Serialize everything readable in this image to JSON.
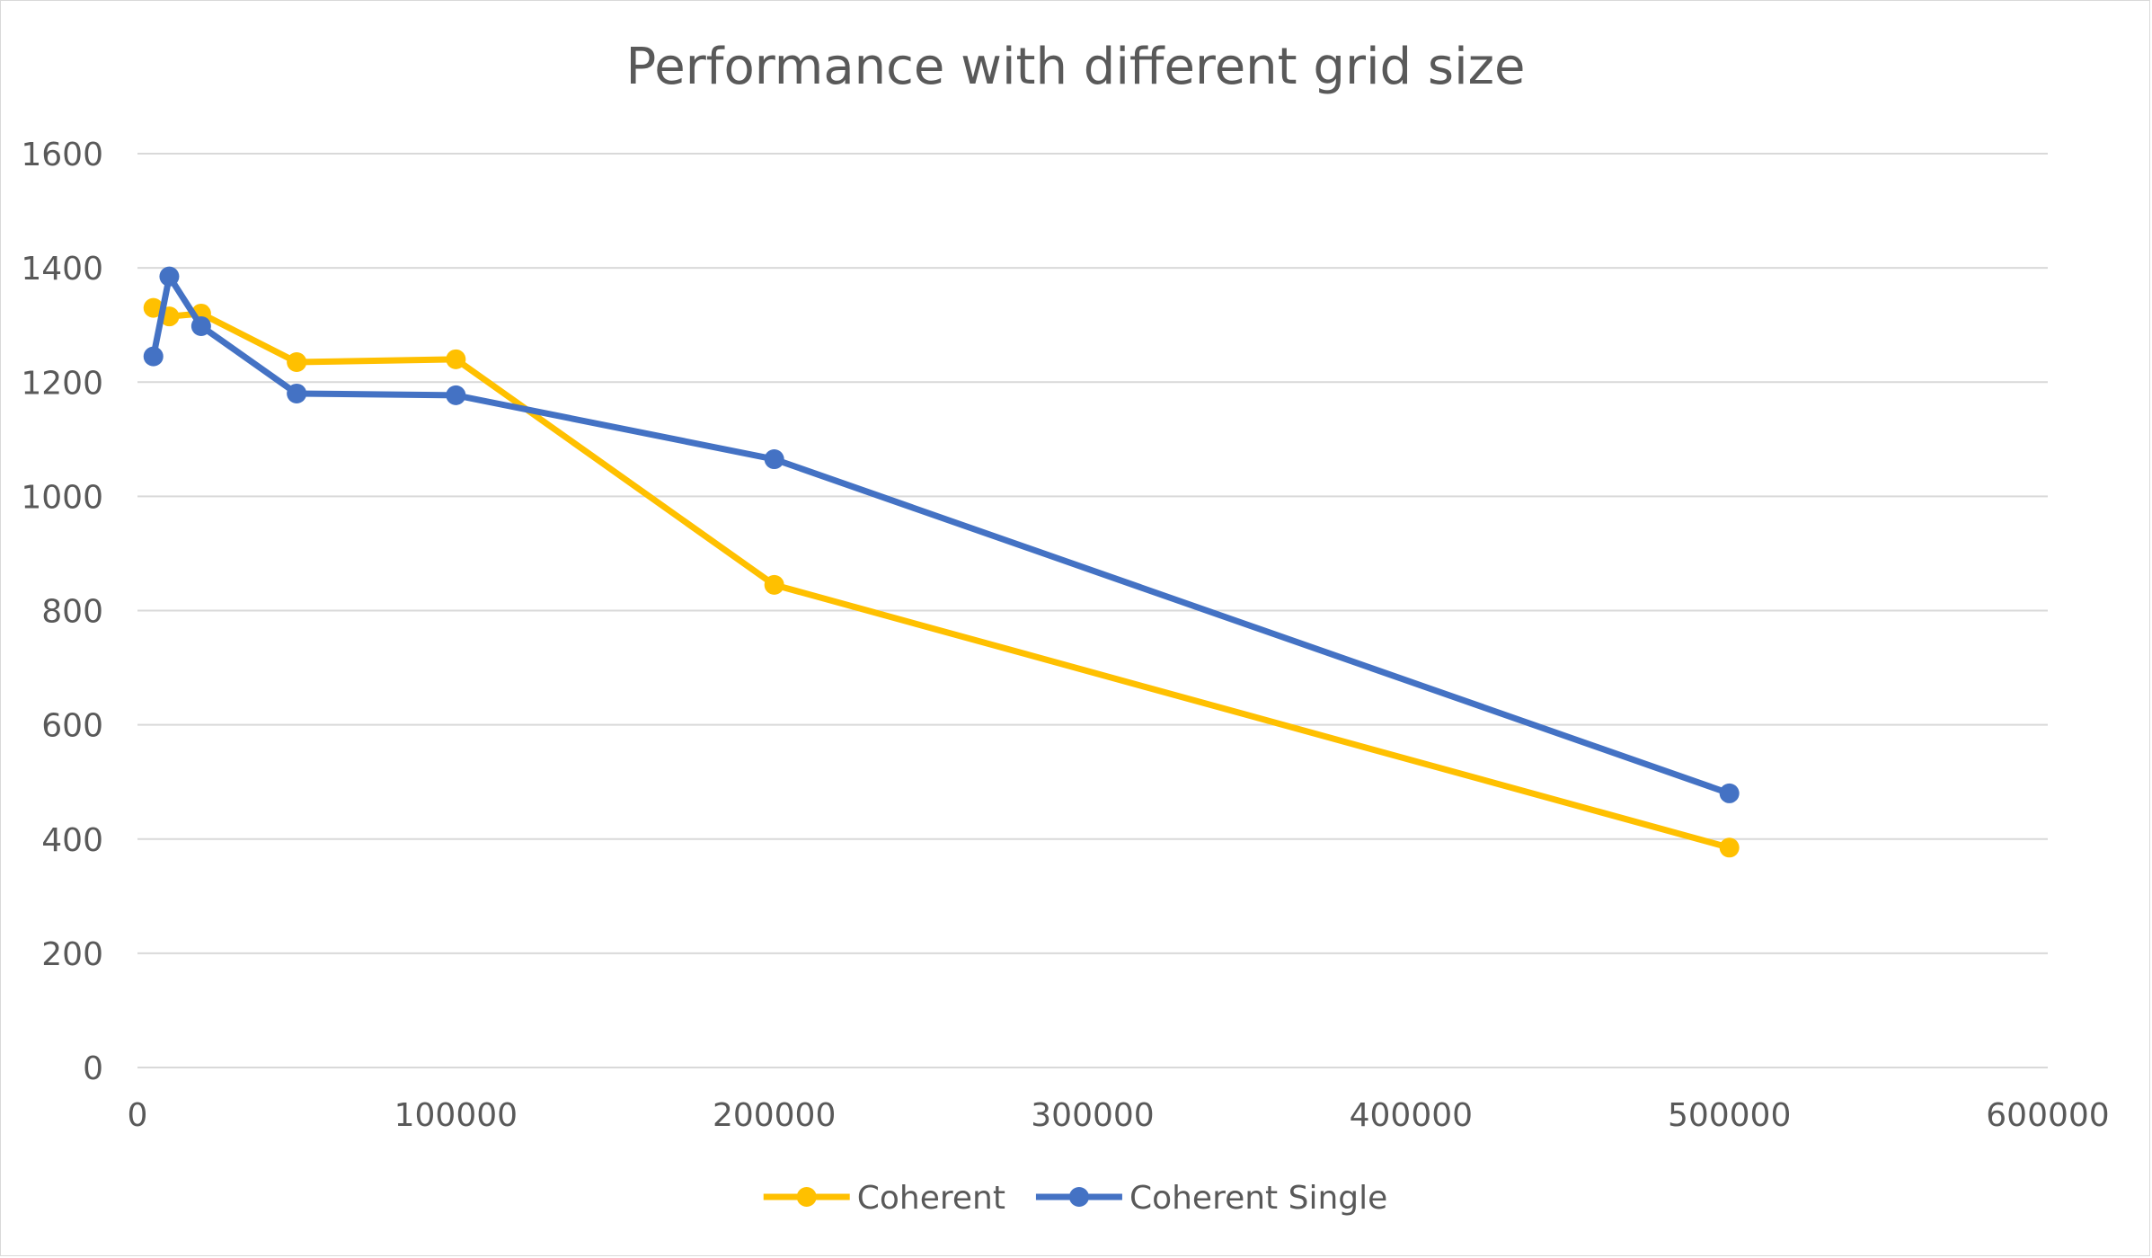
{
  "chart_data": {
    "type": "line",
    "title": "Performance with different grid size",
    "xlabel": "",
    "ylabel": "",
    "xlim": [
      0,
      600000
    ],
    "ylim": [
      0,
      1600
    ],
    "x_ticks": [
      0,
      100000,
      200000,
      300000,
      400000,
      500000,
      600000
    ],
    "y_ticks": [
      0,
      200,
      400,
      600,
      800,
      1000,
      1200,
      1400,
      1600
    ],
    "grid": true,
    "legend_position": "bottom",
    "series": [
      {
        "name": "Coherent",
        "color": "#ffc000",
        "points": [
          {
            "x": 5000,
            "y": 1330
          },
          {
            "x": 10000,
            "y": 1315
          },
          {
            "x": 20000,
            "y": 1320
          },
          {
            "x": 50000,
            "y": 1235
          },
          {
            "x": 100000,
            "y": 1240
          },
          {
            "x": 200000,
            "y": 845
          },
          {
            "x": 500000,
            "y": 385
          }
        ]
      },
      {
        "name": "Coherent Single",
        "color": "#4472c4",
        "points": [
          {
            "x": 5000,
            "y": 1245
          },
          {
            "x": 10000,
            "y": 1385
          },
          {
            "x": 20000,
            "y": 1298
          },
          {
            "x": 50000,
            "y": 1180
          },
          {
            "x": 100000,
            "y": 1177
          },
          {
            "x": 200000,
            "y": 1065
          },
          {
            "x": 500000,
            "y": 480
          }
        ]
      }
    ]
  },
  "style": {
    "gridline_color": "#d9d9d9",
    "text_color": "#595959",
    "background": "#ffffff"
  }
}
